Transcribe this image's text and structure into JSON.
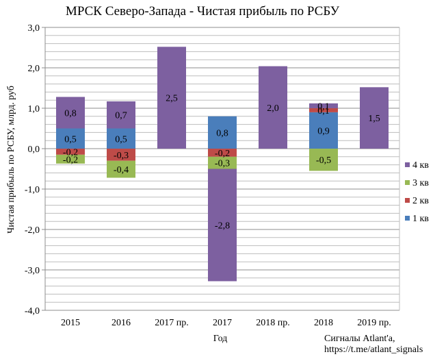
{
  "chart_data": {
    "type": "bar",
    "stacked": true,
    "title": "МРСК Северо-Запада - Чистая прибыль по РСБУ",
    "xlabel": "Год",
    "ylabel": "Чистая прибыль по РСБУ, млрд. руб",
    "ylim": [
      -4.0,
      3.0
    ],
    "yticks": [
      "3,0",
      "2,0",
      "1,0",
      "0,0",
      "-1,0",
      "-2,0",
      "-3,0",
      "-4,0"
    ],
    "ytick_values": [
      3,
      2,
      1,
      0,
      -1,
      -2,
      -3,
      -4
    ],
    "minor_grid_step": 0.2,
    "grid": true,
    "legend_position": "right",
    "categories": [
      "2015",
      "2016",
      "2017 пр.",
      "2017",
      "2018 пр.",
      "2018",
      "2019 пр."
    ],
    "series": [
      {
        "name": "1 кв",
        "color": "#4a7ebb",
        "values": [
          0.5,
          0.5,
          null,
          0.8,
          null,
          0.9,
          null
        ],
        "labels": [
          "0,5",
          "0,5",
          "",
          "0,8",
          "",
          "0,9",
          ""
        ]
      },
      {
        "name": "2 кв",
        "color": "#be4b48",
        "values": [
          -0.15,
          -0.3,
          null,
          -0.2,
          null,
          0.1,
          null
        ],
        "labels": [
          "-0,2",
          "-0,3",
          "",
          "-0,2",
          "",
          "0,1",
          ""
        ]
      },
      {
        "name": "3 кв",
        "color": "#98b954",
        "values": [
          -0.22,
          -0.42,
          null,
          -0.3,
          null,
          -0.55,
          null
        ],
        "labels": [
          "-0,2",
          "-0,4",
          "",
          "-0,3",
          "",
          "-0,5",
          ""
        ]
      },
      {
        "name": "4 кв",
        "color": "#7d60a0",
        "values": [
          0.78,
          0.67,
          2.52,
          -2.78,
          2.04,
          0.12,
          1.52
        ],
        "labels": [
          "0,8",
          "0,7",
          "2,5",
          "-2,8",
          "2,0",
          "0,1",
          "1,5"
        ]
      }
    ]
  },
  "source": {
    "line1": "Сигналы Atlant'a,",
    "line2": "https://t.me/atlant_signals"
  }
}
